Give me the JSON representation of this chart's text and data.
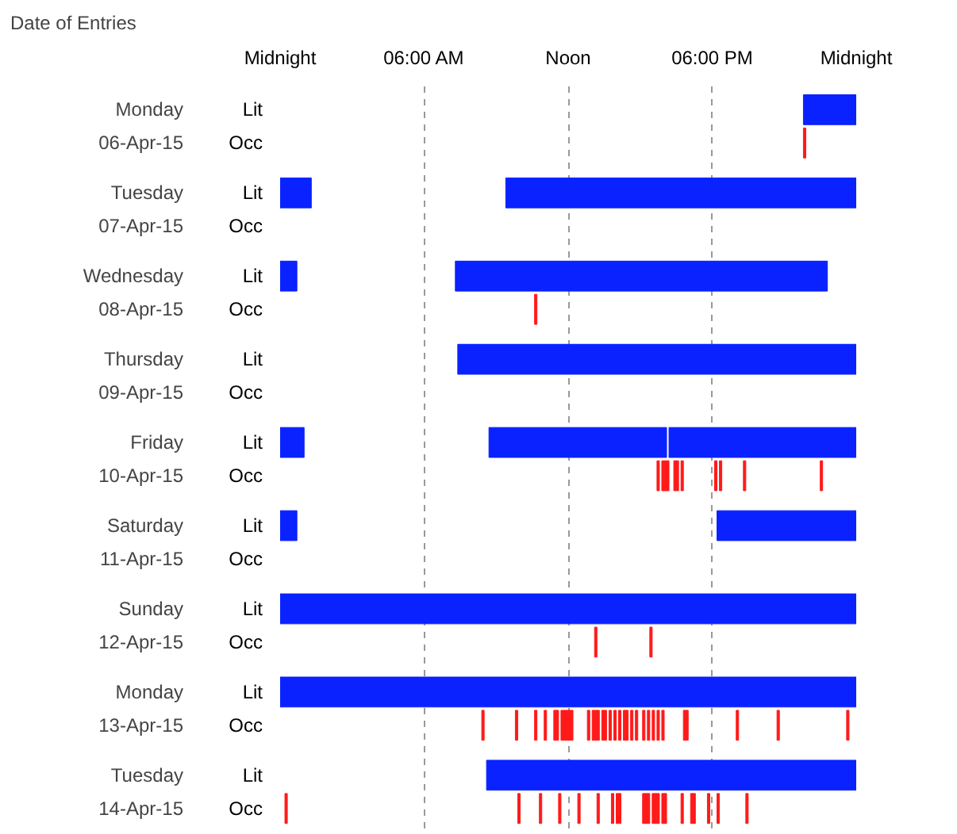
{
  "chart_data": {
    "type": "bar",
    "orientation": "horizontal",
    "grid": "x",
    "xlim": [
      0,
      24
    ],
    "xticks": [
      {
        "value": 0,
        "label": "Midnight"
      },
      {
        "value": 6,
        "label": "06:00 AM"
      },
      {
        "value": 12,
        "label": "Noon"
      },
      {
        "value": 18,
        "label": "06:00 PM"
      },
      {
        "value": 24,
        "label": "Midnight"
      }
    ],
    "categories": [
      "Lit",
      "Occ",
      "Lit",
      "Occ",
      "Lit",
      "Occ",
      "Lit",
      "Occ",
      "Lit",
      "Occ",
      "Lit",
      "Occ",
      "Lit",
      "Occ",
      "Lit",
      "Occ",
      "Lit",
      "Occ"
    ],
    "annotations": [
      "Date of Entries",
      "Monday",
      "06-Apr-15",
      "Tuesday",
      "07-Apr-15",
      "Wednesday",
      "08-Apr-15",
      "Thursday",
      "09-Apr-15",
      "Friday",
      "10-Apr-15",
      "Saturday",
      "11-Apr-15",
      "Sunday",
      "12-Apr-15",
      "Monday",
      "13-Apr-15",
      "Tuesday",
      "14-Apr-15"
    ],
    "series": [
      {
        "color": "#0a22ff",
        "values": [
          2.2,
          null,
          1.3,
          null,
          0.7,
          null,
          16.6,
          null,
          1,
          null,
          0.7,
          null,
          24,
          null,
          24,
          null,
          15.4,
          null
        ],
        "base": [
          21.8,
          null,
          0,
          null,
          0,
          null,
          7.4,
          null,
          0,
          null,
          0,
          null,
          0,
          null,
          0,
          null,
          8.6,
          null
        ]
      },
      {
        "color": "#0a22ff",
        "values": [
          null,
          null,
          14.6,
          null,
          15.5,
          null,
          null,
          null,
          7.4,
          null,
          5.8,
          null,
          null,
          null,
          null,
          null,
          null,
          null
        ],
        "base": [
          null,
          null,
          9.4,
          null,
          7.3,
          null,
          null,
          null,
          8.7,
          null,
          18.2,
          null,
          null,
          null,
          null,
          null,
          null,
          null
        ]
      },
      {
        "color": "#0a22ff",
        "values": [
          null,
          null,
          null,
          null,
          null,
          null,
          null,
          null,
          7.8,
          null,
          null,
          null,
          null,
          null,
          null,
          null,
          null,
          null
        ],
        "base": [
          null,
          null,
          null,
          null,
          null,
          null,
          null,
          null,
          16.2,
          null,
          null,
          null,
          null,
          null,
          null,
          null,
          null,
          null
        ]
      },
      {
        "color": "#ff1a1a",
        "values": [
          null,
          0.1,
          null,
          null,
          null,
          0.1,
          null,
          null,
          null,
          0.1,
          null,
          null,
          null,
          0.1,
          null,
          0.1,
          null,
          0.1
        ],
        "base": [
          null,
          21.8,
          null,
          null,
          null,
          10.6,
          null,
          null,
          null,
          15.7,
          null,
          null,
          null,
          13.1,
          null,
          8.4,
          null,
          0.2
        ]
      },
      {
        "color": "#ff1a1a",
        "values": [
          null,
          null,
          null,
          null,
          null,
          null,
          null,
          null,
          null,
          0.1,
          null,
          null,
          null,
          0.1,
          null,
          0.1,
          null,
          0.1
        ],
        "base": [
          null,
          null,
          null,
          null,
          null,
          null,
          null,
          null,
          null,
          15.9,
          null,
          null,
          null,
          15.4,
          null,
          9.8,
          null,
          9.9
        ]
      },
      {
        "color": "#ff1a1a",
        "values": [
          null,
          null,
          null,
          null,
          null,
          null,
          null,
          null,
          null,
          0.1,
          null,
          null,
          null,
          null,
          null,
          0.1,
          null,
          0.1
        ],
        "base": [
          null,
          null,
          null,
          null,
          null,
          null,
          null,
          null,
          null,
          16.0,
          null,
          null,
          null,
          null,
          null,
          10.6,
          null,
          10.8
        ]
      },
      {
        "color": "#ff1a1a",
        "values": [
          null,
          null,
          null,
          null,
          null,
          null,
          null,
          null,
          null,
          0.1,
          null,
          null,
          null,
          null,
          null,
          0.1,
          null,
          0.1
        ],
        "base": [
          null,
          null,
          null,
          null,
          null,
          null,
          null,
          null,
          null,
          16.1,
          null,
          null,
          null,
          null,
          null,
          11.0,
          null,
          11.6
        ]
      },
      {
        "color": "#ff1a1a",
        "values": [
          null,
          null,
          null,
          null,
          null,
          null,
          null,
          null,
          null,
          0.1,
          null,
          null,
          null,
          null,
          null,
          0.1,
          null,
          0.1
        ],
        "base": [
          null,
          null,
          null,
          null,
          null,
          null,
          null,
          null,
          null,
          16.4,
          null,
          null,
          null,
          null,
          null,
          11.4,
          null,
          12.4
        ]
      },
      {
        "color": "#ff1a1a",
        "values": [
          null,
          null,
          null,
          null,
          null,
          null,
          null,
          null,
          null,
          0.1,
          null,
          null,
          null,
          null,
          null,
          0.1,
          null,
          0.1
        ],
        "base": [
          null,
          null,
          null,
          null,
          null,
          null,
          null,
          null,
          null,
          16.5,
          null,
          null,
          null,
          null,
          null,
          11.5,
          null,
          13.2
        ]
      },
      {
        "color": "#ff1a1a",
        "values": [
          null,
          null,
          null,
          null,
          null,
          null,
          null,
          null,
          null,
          0.1,
          null,
          null,
          null,
          null,
          null,
          0.1,
          null,
          0.1
        ],
        "base": [
          null,
          null,
          null,
          null,
          null,
          null,
          null,
          null,
          null,
          16.7,
          null,
          null,
          null,
          null,
          null,
          11.7,
          null,
          13.8
        ]
      },
      {
        "color": "#ff1a1a",
        "values": [
          null,
          null,
          null,
          null,
          null,
          null,
          null,
          null,
          null,
          0.1,
          null,
          null,
          null,
          null,
          null,
          0.1,
          null,
          0.1
        ],
        "base": [
          null,
          null,
          null,
          null,
          null,
          null,
          null,
          null,
          null,
          18.1,
          null,
          null,
          null,
          null,
          null,
          11.8,
          null,
          14.0
        ]
      },
      {
        "color": "#ff1a1a",
        "values": [
          null,
          null,
          null,
          null,
          null,
          null,
          null,
          null,
          null,
          0.1,
          null,
          null,
          null,
          null,
          null,
          0.1,
          null,
          0.1
        ],
        "base": [
          null,
          null,
          null,
          null,
          null,
          null,
          null,
          null,
          null,
          18.3,
          null,
          null,
          null,
          null,
          null,
          11.9,
          null,
          14.1
        ]
      },
      {
        "color": "#ff1a1a",
        "values": [
          null,
          null,
          null,
          null,
          null,
          null,
          null,
          null,
          null,
          0.1,
          null,
          null,
          null,
          null,
          null,
          0.1,
          null,
          0.1
        ],
        "base": [
          null,
          null,
          null,
          null,
          null,
          null,
          null,
          null,
          null,
          19.3,
          null,
          null,
          null,
          null,
          null,
          12.0,
          null,
          15.1
        ]
      },
      {
        "color": "#ff1a1a",
        "values": [
          null,
          null,
          null,
          null,
          null,
          null,
          null,
          null,
          null,
          0.1,
          null,
          null,
          null,
          null,
          null,
          0.1,
          null,
          0.1
        ],
        "base": [
          null,
          null,
          null,
          null,
          null,
          null,
          null,
          null,
          null,
          22.5,
          null,
          null,
          null,
          null,
          null,
          12.1,
          null,
          15.2
        ]
      },
      {
        "color": "#ff1a1a",
        "values": [
          null,
          null,
          null,
          null,
          null,
          null,
          null,
          null,
          null,
          null,
          null,
          null,
          null,
          null,
          null,
          0.1,
          null,
          0.1
        ],
        "base": [
          null,
          null,
          null,
          null,
          null,
          null,
          null,
          null,
          null,
          null,
          null,
          null,
          null,
          null,
          null,
          12.8,
          null,
          15.3
        ]
      },
      {
        "color": "#ff1a1a",
        "values": [
          null,
          null,
          null,
          null,
          null,
          null,
          null,
          null,
          null,
          null,
          null,
          null,
          null,
          null,
          null,
          0.1,
          null,
          0.1
        ],
        "base": [
          null,
          null,
          null,
          null,
          null,
          null,
          null,
          null,
          null,
          null,
          null,
          null,
          null,
          null,
          null,
          13.0,
          null,
          15.5
        ]
      },
      {
        "color": "#ff1a1a",
        "values": [
          null,
          null,
          null,
          null,
          null,
          null,
          null,
          null,
          null,
          null,
          null,
          null,
          null,
          null,
          null,
          0.1,
          null,
          0.1
        ],
        "base": [
          null,
          null,
          null,
          null,
          null,
          null,
          null,
          null,
          null,
          null,
          null,
          null,
          null,
          null,
          null,
          13.1,
          null,
          15.6
        ]
      },
      {
        "color": "#ff1a1a",
        "values": [
          null,
          null,
          null,
          null,
          null,
          null,
          null,
          null,
          null,
          null,
          null,
          null,
          null,
          null,
          null,
          0.1,
          null,
          0.1
        ],
        "base": [
          null,
          null,
          null,
          null,
          null,
          null,
          null,
          null,
          null,
          null,
          null,
          null,
          null,
          null,
          null,
          13.2,
          null,
          15.7
        ]
      },
      {
        "color": "#ff1a1a",
        "values": [
          null,
          null,
          null,
          null,
          null,
          null,
          null,
          null,
          null,
          null,
          null,
          null,
          null,
          null,
          null,
          0.1,
          null,
          0.1
        ],
        "base": [
          null,
          null,
          null,
          null,
          null,
          null,
          null,
          null,
          null,
          null,
          null,
          null,
          null,
          null,
          null,
          13.4,
          null,
          15.9
        ]
      },
      {
        "color": "#ff1a1a",
        "values": [
          null,
          null,
          null,
          null,
          null,
          null,
          null,
          null,
          null,
          null,
          null,
          null,
          null,
          null,
          null,
          0.1,
          null,
          0.1
        ],
        "base": [
          null,
          null,
          null,
          null,
          null,
          null,
          null,
          null,
          null,
          null,
          null,
          null,
          null,
          null,
          null,
          13.5,
          null,
          16.0
        ]
      },
      {
        "color": "#ff1a1a",
        "values": [
          null,
          null,
          null,
          null,
          null,
          null,
          null,
          null,
          null,
          null,
          null,
          null,
          null,
          null,
          null,
          0.1,
          null,
          0.1
        ],
        "base": [
          null,
          null,
          null,
          null,
          null,
          null,
          null,
          null,
          null,
          null,
          null,
          null,
          null,
          null,
          null,
          13.7,
          null,
          16.7
        ]
      },
      {
        "color": "#ff1a1a",
        "values": [
          null,
          null,
          null,
          null,
          null,
          null,
          null,
          null,
          null,
          null,
          null,
          null,
          null,
          null,
          null,
          0.1,
          null,
          0.1
        ],
        "base": [
          null,
          null,
          null,
          null,
          null,
          null,
          null,
          null,
          null,
          null,
          null,
          null,
          null,
          null,
          null,
          13.9,
          null,
          17.1
        ]
      },
      {
        "color": "#ff1a1a",
        "values": [
          null,
          null,
          null,
          null,
          null,
          null,
          null,
          null,
          null,
          null,
          null,
          null,
          null,
          null,
          null,
          0.1,
          null,
          0.1
        ],
        "base": [
          null,
          null,
          null,
          null,
          null,
          null,
          null,
          null,
          null,
          null,
          null,
          null,
          null,
          null,
          null,
          14.1,
          null,
          17.2
        ]
      },
      {
        "color": "#ff1a1a",
        "values": [
          null,
          null,
          null,
          null,
          null,
          null,
          null,
          null,
          null,
          null,
          null,
          null,
          null,
          null,
          null,
          0.1,
          null,
          0.1
        ],
        "base": [
          null,
          null,
          null,
          null,
          null,
          null,
          null,
          null,
          null,
          null,
          null,
          null,
          null,
          null,
          null,
          14.3,
          null,
          17.8
        ]
      },
      {
        "color": "#ff1a1a",
        "values": [
          null,
          null,
          null,
          null,
          null,
          null,
          null,
          null,
          null,
          null,
          null,
          null,
          null,
          null,
          null,
          0.1,
          null,
          0.1
        ],
        "base": [
          null,
          null,
          null,
          null,
          null,
          null,
          null,
          null,
          null,
          null,
          null,
          null,
          null,
          null,
          null,
          14.4,
          null,
          18.2
        ]
      },
      {
        "color": "#ff1a1a",
        "values": [
          null,
          null,
          null,
          null,
          null,
          null,
          null,
          null,
          null,
          null,
          null,
          null,
          null,
          null,
          null,
          0.1,
          null,
          0.1
        ],
        "base": [
          null,
          null,
          null,
          null,
          null,
          null,
          null,
          null,
          null,
          null,
          null,
          null,
          null,
          null,
          null,
          14.6,
          null,
          19.4
        ]
      },
      {
        "color": "#ff1a1a",
        "values": [
          null,
          null,
          null,
          null,
          null,
          null,
          null,
          null,
          null,
          null,
          null,
          null,
          null,
          null,
          null,
          0.1,
          null,
          null
        ],
        "base": [
          null,
          null,
          null,
          null,
          null,
          null,
          null,
          null,
          null,
          null,
          null,
          null,
          null,
          null,
          null,
          14.8,
          null,
          null
        ]
      },
      {
        "color": "#ff1a1a",
        "values": [
          null,
          null,
          null,
          null,
          null,
          null,
          null,
          null,
          null,
          null,
          null,
          null,
          null,
          null,
          null,
          0.1,
          null,
          null
        ],
        "base": [
          null,
          null,
          null,
          null,
          null,
          null,
          null,
          null,
          null,
          null,
          null,
          null,
          null,
          null,
          null,
          15.1,
          null,
          null
        ]
      },
      {
        "color": "#ff1a1a",
        "values": [
          null,
          null,
          null,
          null,
          null,
          null,
          null,
          null,
          null,
          null,
          null,
          null,
          null,
          null,
          null,
          0.1,
          null,
          null
        ],
        "base": [
          null,
          null,
          null,
          null,
          null,
          null,
          null,
          null,
          null,
          null,
          null,
          null,
          null,
          null,
          null,
          15.3,
          null,
          null
        ]
      },
      {
        "color": "#ff1a1a",
        "values": [
          null,
          null,
          null,
          null,
          null,
          null,
          null,
          null,
          null,
          null,
          null,
          null,
          null,
          null,
          null,
          0.1,
          null,
          null
        ],
        "base": [
          null,
          null,
          null,
          null,
          null,
          null,
          null,
          null,
          null,
          null,
          null,
          null,
          null,
          null,
          null,
          15.5,
          null,
          null
        ]
      },
      {
        "color": "#ff1a1a",
        "values": [
          null,
          null,
          null,
          null,
          null,
          null,
          null,
          null,
          null,
          null,
          null,
          null,
          null,
          null,
          null,
          0.1,
          null,
          null
        ],
        "base": [
          null,
          null,
          null,
          null,
          null,
          null,
          null,
          null,
          null,
          null,
          null,
          null,
          null,
          null,
          null,
          15.7,
          null,
          null
        ]
      },
      {
        "color": "#ff1a1a",
        "values": [
          null,
          null,
          null,
          null,
          null,
          null,
          null,
          null,
          null,
          null,
          null,
          null,
          null,
          null,
          null,
          0.1,
          null,
          null
        ],
        "base": [
          null,
          null,
          null,
          null,
          null,
          null,
          null,
          null,
          null,
          null,
          null,
          null,
          null,
          null,
          null,
          15.9,
          null,
          null
        ]
      },
      {
        "color": "#ff1a1a",
        "values": [
          null,
          null,
          null,
          null,
          null,
          null,
          null,
          null,
          null,
          null,
          null,
          null,
          null,
          null,
          null,
          0.1,
          null,
          null
        ],
        "base": [
          null,
          null,
          null,
          null,
          null,
          null,
          null,
          null,
          null,
          null,
          null,
          null,
          null,
          null,
          null,
          16.8,
          null,
          null
        ]
      },
      {
        "color": "#ff1a1a",
        "values": [
          null,
          null,
          null,
          null,
          null,
          null,
          null,
          null,
          null,
          null,
          null,
          null,
          null,
          null,
          null,
          0.1,
          null,
          null
        ],
        "base": [
          null,
          null,
          null,
          null,
          null,
          null,
          null,
          null,
          null,
          null,
          null,
          null,
          null,
          null,
          null,
          16.9,
          null,
          null
        ]
      },
      {
        "color": "#ff1a1a",
        "values": [
          null,
          null,
          null,
          null,
          null,
          null,
          null,
          null,
          null,
          null,
          null,
          null,
          null,
          null,
          null,
          0.1,
          null,
          null
        ],
        "base": [
          null,
          null,
          null,
          null,
          null,
          null,
          null,
          null,
          null,
          null,
          null,
          null,
          null,
          null,
          null,
          19.0,
          null,
          null
        ]
      },
      {
        "color": "#ff1a1a",
        "values": [
          null,
          null,
          null,
          null,
          null,
          null,
          null,
          null,
          null,
          null,
          null,
          null,
          null,
          null,
          null,
          0.1,
          null,
          null
        ],
        "base": [
          null,
          null,
          null,
          null,
          null,
          null,
          null,
          null,
          null,
          null,
          null,
          null,
          null,
          null,
          null,
          20.7,
          null,
          null
        ]
      },
      {
        "color": "#ff1a1a",
        "values": [
          null,
          null,
          null,
          null,
          null,
          null,
          null,
          null,
          null,
          null,
          null,
          null,
          null,
          null,
          null,
          0.1,
          null,
          null
        ],
        "base": [
          null,
          null,
          null,
          null,
          null,
          null,
          null,
          null,
          null,
          null,
          null,
          null,
          null,
          null,
          null,
          23.6,
          null,
          null
        ]
      }
    ]
  }
}
